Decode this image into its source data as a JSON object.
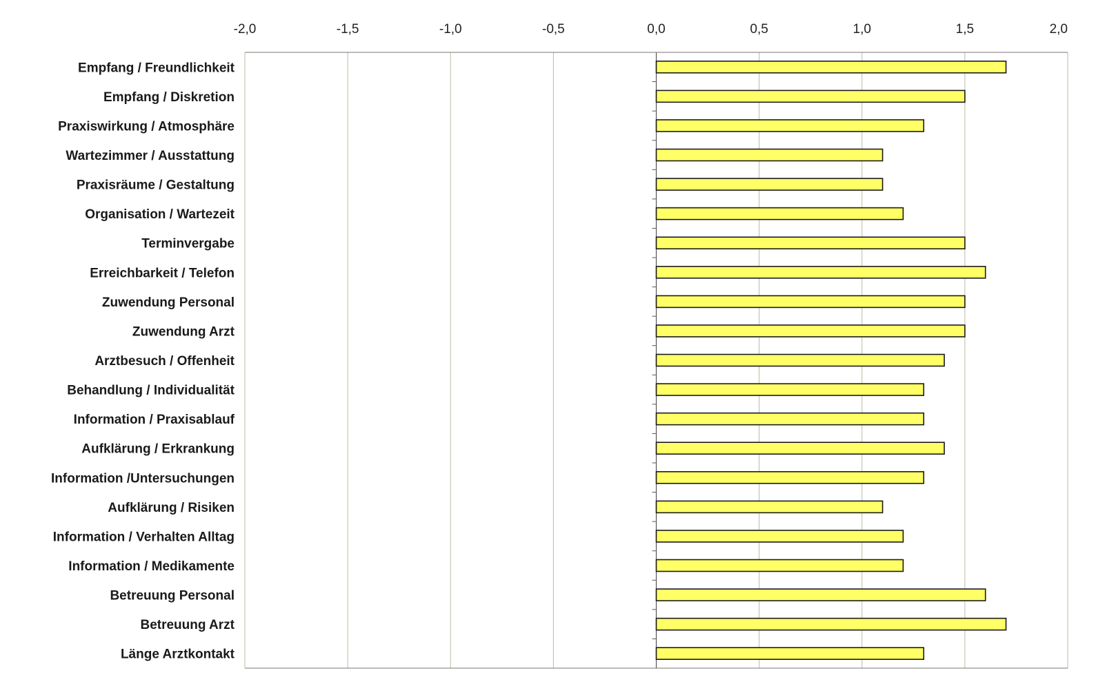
{
  "chart_data": {
    "type": "bar",
    "orientation": "horizontal",
    "title": "",
    "xlabel": "",
    "ylabel": "",
    "xlim": [
      -2.0,
      2.0
    ],
    "x_ticks": [
      -2.0,
      -1.5,
      -1.0,
      -0.5,
      0.0,
      0.5,
      1.0,
      1.5,
      2.0
    ],
    "x_tick_labels": [
      "-2,0",
      "-1,5",
      "-1,0",
      "-0,5",
      "0,0",
      "0,5",
      "1,0",
      "1,5",
      "2,0"
    ],
    "grid": "vertical",
    "legend": "none",
    "bar_color": "#ffff66",
    "bar_edge_color": "#1a1a1a",
    "grid_color": "#b8bca0",
    "categories": [
      "Empfang / Freundlichkeit",
      "Empfang / Diskretion",
      "Praxiswirkung / Atmosphäre",
      "Wartezimmer / Ausstattung",
      "Praxisräume / Gestaltung",
      "Organisation / Wartezeit",
      "Terminvergabe",
      "Erreichbarkeit / Telefon",
      "Zuwendung Personal",
      "Zuwendung Arzt",
      "Arztbesuch / Offenheit",
      "Behandlung / Individualität",
      "Information / Praxisablauf",
      "Aufklärung / Erkrankung",
      "Information /Untersuchungen",
      "Aufklärung / Risiken",
      "Information / Verhalten Alltag",
      "Information / Medikamente",
      "Betreuung Personal",
      "Betreuung Arzt",
      "Länge Arztkontakt"
    ],
    "values": [
      1.7,
      1.5,
      1.3,
      1.1,
      1.1,
      1.2,
      1.5,
      1.6,
      1.5,
      1.5,
      1.4,
      1.3,
      1.3,
      1.4,
      1.3,
      1.1,
      1.2,
      1.2,
      1.6,
      1.7,
      1.3
    ]
  }
}
